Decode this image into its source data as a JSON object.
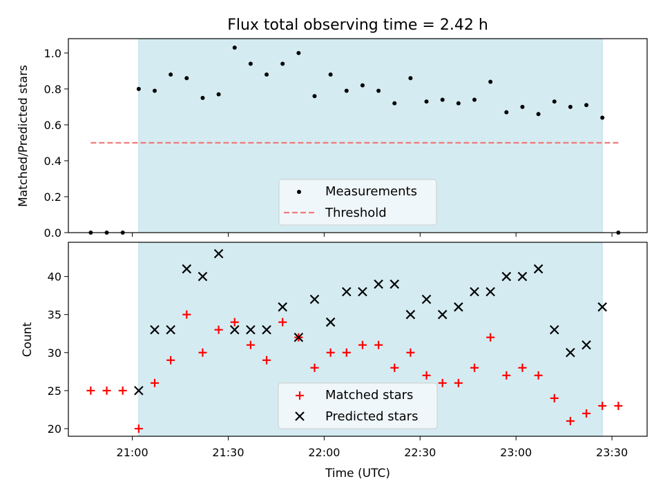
{
  "chart_data": [
    {
      "type": "scatter",
      "title": "Flux total observing time = 2.42 h",
      "ylabel": "Matched/Predicted stars",
      "xlabel": "",
      "ylim": [
        0,
        1.08
      ],
      "yticks": [
        "0.0",
        "0.2",
        "0.4",
        "0.6",
        "0.8",
        "1.0"
      ],
      "ytick_values": [
        0,
        0.2,
        0.4,
        0.6,
        0.8,
        1.0
      ],
      "shaded_range": [
        "21:02",
        "23:27"
      ],
      "threshold": {
        "value": 0.5,
        "from": "20:47",
        "to": "23:32",
        "color": "#f07b7b"
      },
      "legend": {
        "placement": "lower-center",
        "entries": [
          "Measurements",
          "Threshold"
        ]
      },
      "series": [
        {
          "name": "Measurements",
          "color": "#000000",
          "x": [
            "20:47",
            "20:52",
            "20:57",
            "21:02",
            "21:07",
            "21:12",
            "21:17",
            "21:22",
            "21:27",
            "21:32",
            "21:37",
            "21:42",
            "21:47",
            "21:52",
            "21:57",
            "22:02",
            "22:07",
            "22:12",
            "22:17",
            "22:22",
            "22:27",
            "22:32",
            "22:37",
            "22:42",
            "22:47",
            "22:52",
            "22:57",
            "23:02",
            "23:07",
            "23:12",
            "23:17",
            "23:22",
            "23:27",
            "23:32"
          ],
          "y": [
            0.0,
            0.0,
            0.0,
            0.8,
            0.79,
            0.88,
            0.86,
            0.75,
            0.77,
            1.03,
            0.94,
            0.88,
            0.94,
            1.0,
            0.76,
            0.88,
            0.79,
            0.82,
            0.79,
            0.72,
            0.86,
            0.73,
            0.74,
            0.72,
            0.74,
            0.84,
            0.67,
            0.7,
            0.66,
            0.73,
            0.7,
            0.71,
            0.64,
            0.0
          ]
        }
      ]
    },
    {
      "type": "scatter",
      "title": "",
      "ylabel": "Count",
      "xlabel": "Time (UTC)",
      "ylim": [
        19,
        44.5
      ],
      "yticks": [
        "20",
        "25",
        "30",
        "35",
        "40"
      ],
      "ytick_values": [
        20,
        25,
        30,
        35,
        40
      ],
      "xlim": [
        "20:40",
        "23:41"
      ],
      "xticks": [
        "21:00",
        "21:30",
        "22:00",
        "22:30",
        "23:00",
        "23:30"
      ],
      "shaded_range": [
        "21:02",
        "23:27"
      ],
      "legend": {
        "placement": "lower-center",
        "entries": [
          "Matched stars",
          "Predicted stars"
        ]
      },
      "series": [
        {
          "name": "Matched stars",
          "marker": "plus",
          "color": "#ff0000",
          "x": [
            "20:47",
            "20:52",
            "20:57",
            "21:02",
            "21:07",
            "21:12",
            "21:17",
            "21:22",
            "21:27",
            "21:32",
            "21:37",
            "21:42",
            "21:47",
            "21:52",
            "21:57",
            "22:02",
            "22:07",
            "22:12",
            "22:17",
            "22:22",
            "22:27",
            "22:32",
            "22:37",
            "22:42",
            "22:47",
            "22:52",
            "22:57",
            "23:02",
            "23:07",
            "23:12",
            "23:17",
            "23:22",
            "23:27",
            "23:32"
          ],
          "y": [
            25,
            25,
            25,
            20,
            26,
            29,
            35,
            30,
            33,
            34,
            31,
            29,
            34,
            32,
            28,
            30,
            30,
            31,
            31,
            28,
            30,
            27,
            26,
            26,
            28,
            32,
            27,
            28,
            27,
            24,
            21,
            22,
            23,
            23
          ]
        },
        {
          "name": "Predicted stars",
          "marker": "x",
          "color": "#000000",
          "x": [
            "21:02",
            "21:07",
            "21:12",
            "21:17",
            "21:22",
            "21:27",
            "21:32",
            "21:37",
            "21:42",
            "21:47",
            "21:52",
            "21:57",
            "22:02",
            "22:07",
            "22:12",
            "22:17",
            "22:22",
            "22:27",
            "22:32",
            "22:37",
            "22:42",
            "22:47",
            "22:52",
            "22:57",
            "23:02",
            "23:07",
            "23:12",
            "23:17",
            "23:22",
            "23:27"
          ],
          "y": [
            25,
            33,
            33,
            41,
            40,
            43,
            33,
            33,
            33,
            36,
            32,
            37,
            34,
            38,
            38,
            39,
            39,
            35,
            37,
            35,
            36,
            38,
            38,
            40,
            40,
            41,
            33,
            30,
            31,
            36
          ]
        }
      ]
    }
  ],
  "colors": {
    "shade": "#d4ebf1",
    "shade_edge": "#b9dde6",
    "legend_bg": "#f5f9fb",
    "legend_edge": "#cccccc"
  }
}
